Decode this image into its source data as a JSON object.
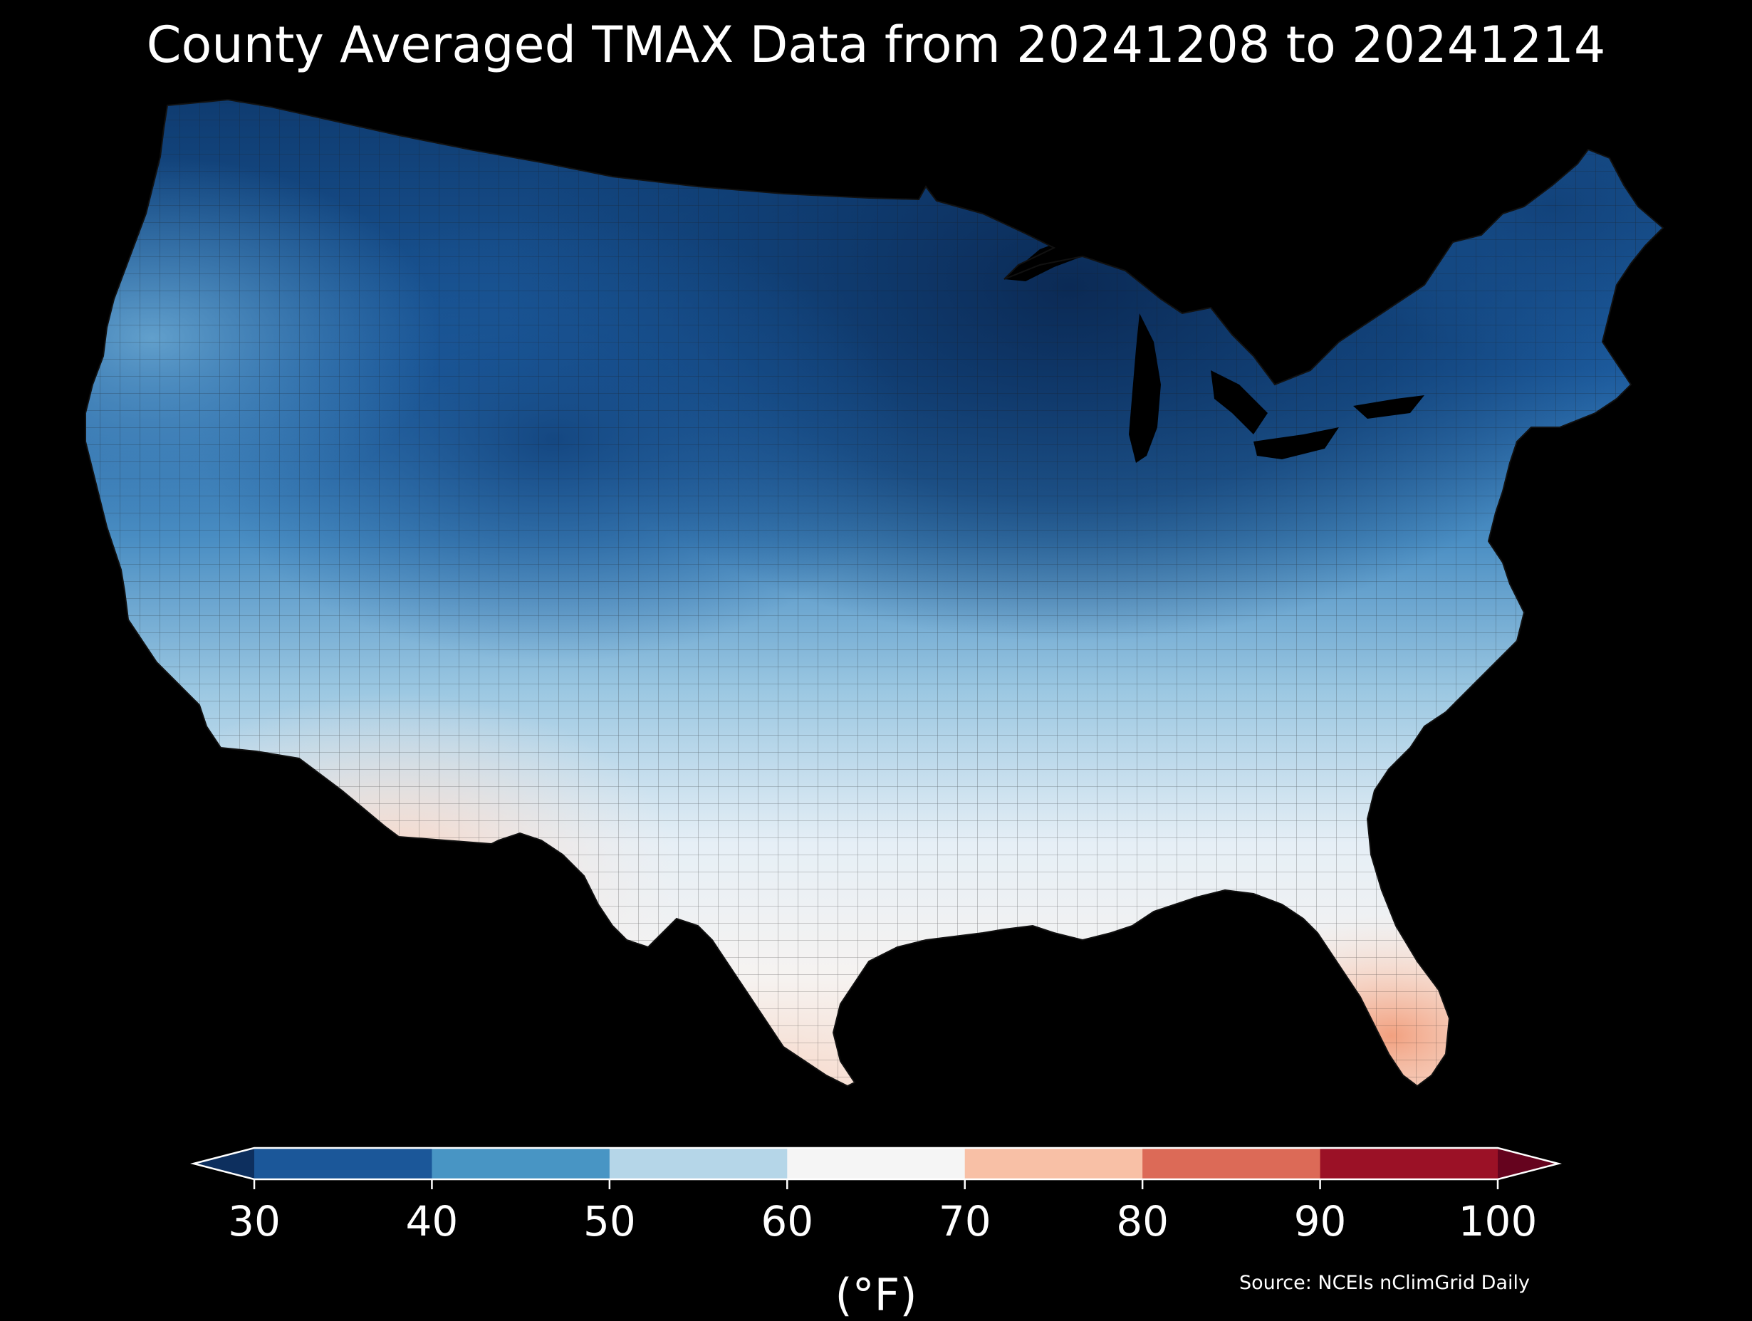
{
  "title": "County Averaged TMAX Data from 20241208 to 20241214",
  "source": "Source: NCEIs nClimGrid Daily",
  "colorbar": {
    "unit_label": "(°F)",
    "ticks": [
      "30",
      "40",
      "50",
      "60",
      "70",
      "80",
      "90",
      "100"
    ],
    "bins": [
      {
        "range": "30-40",
        "color": "#1b5799"
      },
      {
        "range": "40-50",
        "color": "#4895c4"
      },
      {
        "range": "50-60",
        "color": "#b5d6e8"
      },
      {
        "range": "60-70",
        "color": "#f5f5f5"
      },
      {
        "range": "70-80",
        "color": "#f8c0a6"
      },
      {
        "range": "80-90",
        "color": "#dc6a57"
      },
      {
        "range": "90-100",
        "color": "#9b1126"
      }
    ],
    "under_color": "#0d2f5e",
    "over_color": "#65031e",
    "extend": "both",
    "orientation": "horizontal",
    "placement": "bottom"
  },
  "map": {
    "region": "Contiguous United States",
    "unit": "county",
    "variable": "TMAX",
    "background": "#000000",
    "border_color": "#1a1a1a",
    "regional_pattern": [
      {
        "region": "Northern Plains / Upper Midwest",
        "approx_tmax": "below 30"
      },
      {
        "region": "Northern Rockies / Intermountain",
        "approx_tmax": "30-40"
      },
      {
        "region": "Pacific Northwest",
        "approx_tmax": "40-50"
      },
      {
        "region": "Northeast / New England",
        "approx_tmax": "30-45"
      },
      {
        "region": "Central Plains / Midwest",
        "approx_tmax": "45-55"
      },
      {
        "region": "Southern Plains / Southeast",
        "approx_tmax": "55-65"
      },
      {
        "region": "Desert Southwest",
        "approx_tmax": "65-75"
      },
      {
        "region": "South Texas",
        "approx_tmax": "65-75"
      },
      {
        "region": "Florida Peninsula",
        "approx_tmax": "70-80"
      }
    ]
  }
}
